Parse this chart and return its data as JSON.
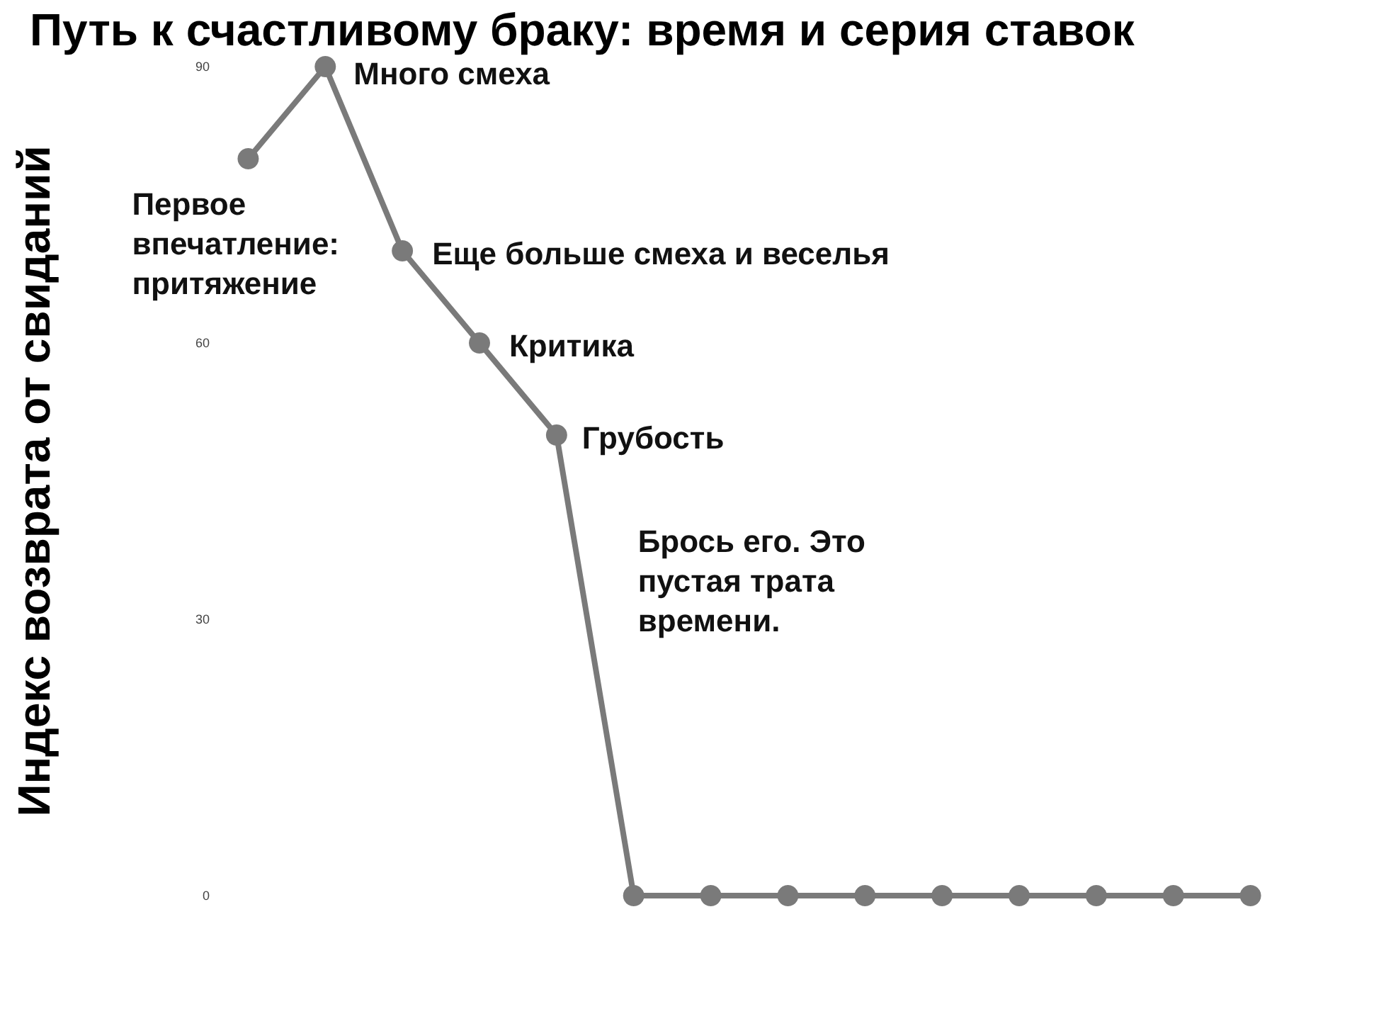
{
  "chart_data": {
    "type": "line",
    "title": "Путь к счастливому браку: время и серия ставок",
    "ylabel": "Индекс возврата от свиданий",
    "categories": [
      null,
      null,
      null,
      null,
      null,
      null,
      null,
      null,
      null,
      null,
      null,
      null,
      null,
      null
    ],
    "series": [
      {
        "color": "#7a7a7a",
        "values": [
          80,
          90,
          70,
          60,
          50,
          0,
          0,
          0,
          0,
          0,
          0,
          0,
          0,
          0
        ]
      }
    ],
    "ylim": [
      0,
      90
    ],
    "yticks": [
      0,
      30,
      60,
      90
    ],
    "marker": "circle",
    "line_style": "solid",
    "annotations": [
      "Первое\nвпечатление:\nпритяжение",
      "Много смеха",
      "Еще больше смеха и веселья",
      "Критика",
      "Грубость",
      "Брось его. Это\nпустая трата\nвремени."
    ]
  }
}
